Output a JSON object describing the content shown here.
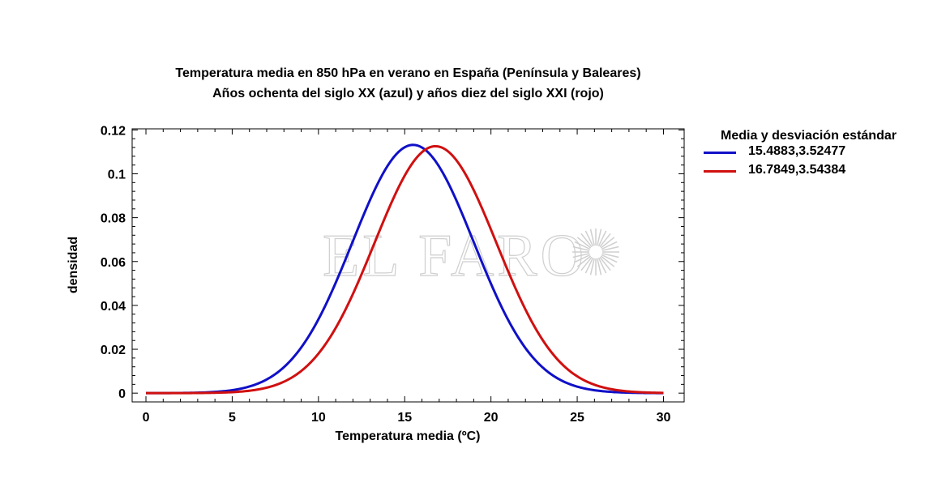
{
  "title": {
    "line1": "Temperatura media en 850 hPa en verano en España (Península y Baleares)",
    "line2": "Años ochenta del siglo XX (azul) y años diez del siglo XXI (rojo)"
  },
  "watermark": "EL FARO",
  "chart_data": {
    "type": "line",
    "title": "Temperatura media en 850 hPa en verano en España (Península y Baleares)",
    "subtitle": "Años ochenta del siglo XX (azul) y años diez del siglo XXI (rojo)",
    "xlabel": "Temperatura media (ºC)",
    "ylabel": "densidad",
    "xlim": [
      -0.8,
      31.2
    ],
    "ylim": [
      -0.004,
      0.1205
    ],
    "x_ticks": [
      0,
      5,
      10,
      15,
      20,
      25,
      30
    ],
    "x_tick_labels": [
      "0",
      "5",
      "10",
      "15",
      "20",
      "25",
      "30"
    ],
    "y_ticks": [
      0,
      0.02,
      0.04,
      0.06,
      0.08,
      0.1,
      0.12
    ],
    "y_tick_labels": [
      "0",
      "0.02",
      "0.04",
      "0.06",
      "0.08",
      "0.1",
      "0.12"
    ],
    "grid": false,
    "legend": {
      "title": "Media y desviación estándar",
      "placement": "right"
    },
    "series": [
      {
        "name": "15.4883,3.52477",
        "color": "#1010c8",
        "distribution": "normal",
        "mean": 15.4883,
        "std": 3.52477,
        "x_range": [
          0,
          30
        ],
        "x": [
          0,
          2.5,
          5,
          7.5,
          10,
          12.5,
          15,
          15.4883,
          17.5,
          20,
          22.5,
          25,
          27.5,
          30
        ],
        "y": [
          7e-05,
          0.00048,
          0.00135,
          0.00867,
          0.0337,
          0.0788,
          0.1121,
          0.1132,
          0.0963,
          0.0498,
          0.0155,
          0.0029,
          0.0003,
          2e-05
        ]
      },
      {
        "name": "16.7849,3.54384",
        "color": "#d01010",
        "distribution": "normal",
        "mean": 16.7849,
        "std": 3.54384,
        "x_range": [
          0,
          30
        ],
        "x": [
          0,
          2.5,
          5,
          7.5,
          10,
          12.5,
          15,
          16.7849,
          17.5,
          20,
          22.5,
          25,
          27.5,
          30
        ],
        "y": [
          1e-05,
          0.0001,
          0.00045,
          0.00367,
          0.018,
          0.0543,
          0.0989,
          0.1126,
          0.1104,
          0.0746,
          0.0305,
          0.0075,
          0.0011,
          0.0001
        ]
      }
    ]
  }
}
